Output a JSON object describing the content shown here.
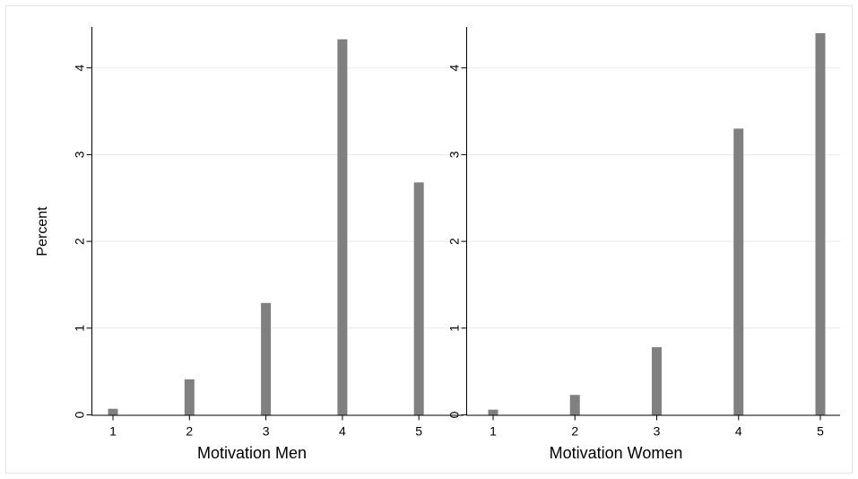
{
  "chart_data": {
    "type": "bar",
    "ylabel": "Percent",
    "ylim": [
      0,
      4.5
    ],
    "y_ticks": [
      "0",
      "1",
      "2",
      "3",
      "4"
    ],
    "grid": true,
    "colors": {
      "bar": "#808080",
      "grid": "#eaeaea",
      "axis": "#000000",
      "border": "#e4e4e4"
    },
    "panels": [
      {
        "xlabel": "Motivation Men",
        "categories": [
          "1",
          "2",
          "3",
          "4",
          "5"
        ],
        "values": [
          0.07,
          0.41,
          1.29,
          4.33,
          2.68
        ]
      },
      {
        "xlabel": "Motivation Women",
        "categories": [
          "1",
          "2",
          "3",
          "4",
          "5"
        ],
        "values": [
          0.06,
          0.23,
          0.78,
          3.3,
          4.4
        ]
      }
    ]
  }
}
